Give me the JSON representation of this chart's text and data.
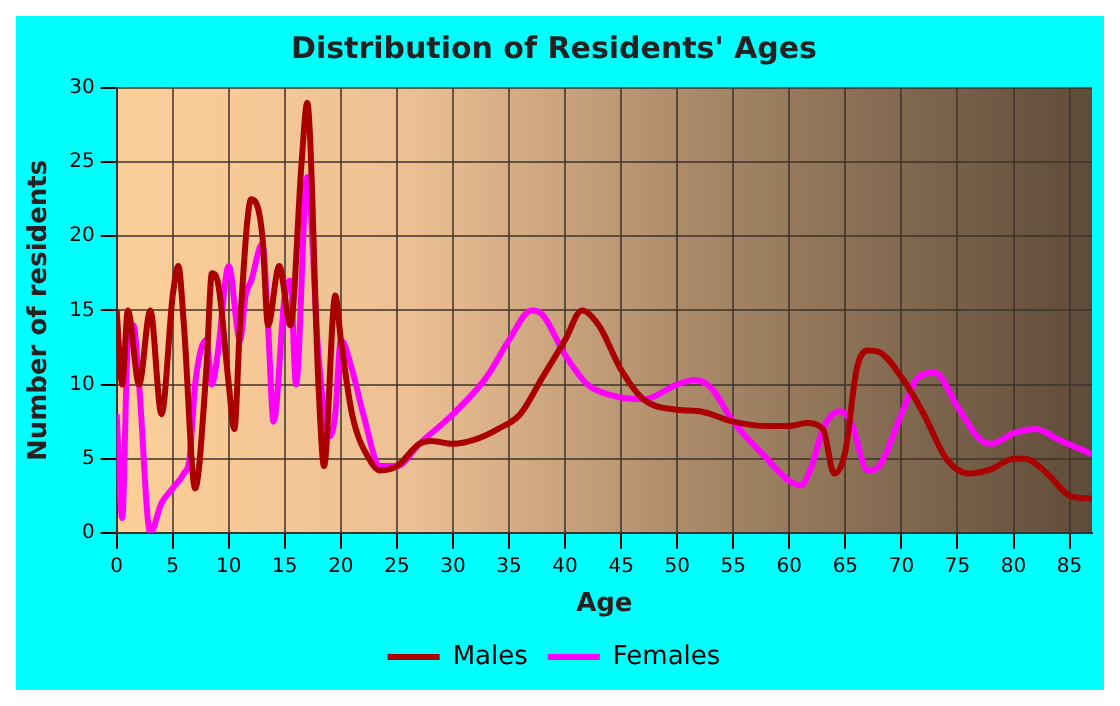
{
  "chart_data": {
    "type": "line",
    "title": "Distribution of Residents' Ages",
    "xlabel": "Age",
    "ylabel": "Number of residents",
    "xlim": [
      0,
      87
    ],
    "xticks": [
      0,
      5,
      10,
      15,
      20,
      25,
      30,
      35,
      40,
      45,
      50,
      55,
      60,
      65,
      70,
      75,
      80,
      85
    ],
    "ylim": [
      0,
      30
    ],
    "yticks": [
      0,
      5,
      10,
      15,
      20,
      25,
      30
    ],
    "grid": true,
    "legend": "bottom",
    "series": [
      {
        "name": "Males",
        "color": "#aa0000",
        "x": [
          0,
          0.5,
          1,
          2,
          3,
          4,
          5,
          5.5,
          6,
          7,
          8,
          8.5,
          9,
          10,
          10.5,
          11,
          12,
          13,
          13.5,
          14.5,
          15.5,
          16.5,
          17,
          18,
          18.5,
          19.5,
          20,
          21,
          22.5,
          23.5,
          25,
          27,
          28,
          30,
          32,
          34,
          36,
          38,
          40,
          41.5,
          43,
          45,
          47,
          50,
          52,
          55,
          58,
          60,
          61.5,
          63,
          64,
          65,
          66,
          67,
          68,
          70,
          72,
          74,
          76,
          78,
          80,
          81,
          83,
          85,
          87
        ],
        "values": [
          15,
          10,
          15,
          10,
          15,
          8,
          16,
          18,
          14,
          3,
          11,
          17.5,
          17,
          10,
          7,
          14,
          22.5,
          20,
          14,
          18,
          14,
          25,
          29,
          10,
          4.5,
          16,
          13,
          8,
          5,
          4.2,
          4.5,
          6,
          6.2,
          6,
          6.3,
          7,
          8,
          10.5,
          13,
          15,
          14,
          11,
          9,
          8.3,
          8.2,
          7.5,
          7.2,
          7.2,
          7.4,
          7,
          4,
          5.5,
          11,
          12.3,
          12.2,
          10.5,
          8,
          5,
          4,
          4.3,
          5,
          5,
          4,
          2.5,
          2.3
        ]
      },
      {
        "name": "Females",
        "color": "#ff00ff",
        "x": [
          0,
          0.5,
          1,
          1.5,
          2,
          3,
          4,
          5,
          6,
          6.5,
          7,
          8,
          8.5,
          9,
          10,
          11,
          11.5,
          12,
          13,
          13.5,
          14,
          15,
          15.5,
          16,
          17,
          18,
          19,
          19.5,
          20,
          21,
          22,
          23.5,
          25,
          27,
          30,
          33,
          35,
          37,
          38,
          40,
          42,
          44,
          47,
          50,
          51.5,
          53,
          55,
          58,
          60,
          61,
          62,
          63,
          64.5,
          65.5,
          67,
          68,
          70,
          71.5,
          73,
          75,
          77,
          78,
          80,
          82,
          84,
          87
        ],
        "values": [
          8,
          1,
          13,
          14,
          10,
          0,
          2,
          3,
          4,
          5,
          10,
          13,
          10,
          12,
          18,
          13,
          16,
          17,
          19.5,
          14,
          7.5,
          16,
          17,
          10,
          24,
          12,
          6.5,
          8,
          13,
          11,
          8,
          4.5,
          4.5,
          6,
          8,
          10.5,
          13,
          15,
          14.7,
          12,
          10,
          9.3,
          9,
          10,
          10.3,
          9.8,
          7.5,
          5,
          3.5,
          3.2,
          4.5,
          7,
          8.2,
          7.5,
          4.2,
          4.5,
          8,
          10.5,
          10.8,
          8.5,
          6.3,
          6,
          6.7,
          7,
          6.3,
          5.3
        ]
      }
    ]
  }
}
